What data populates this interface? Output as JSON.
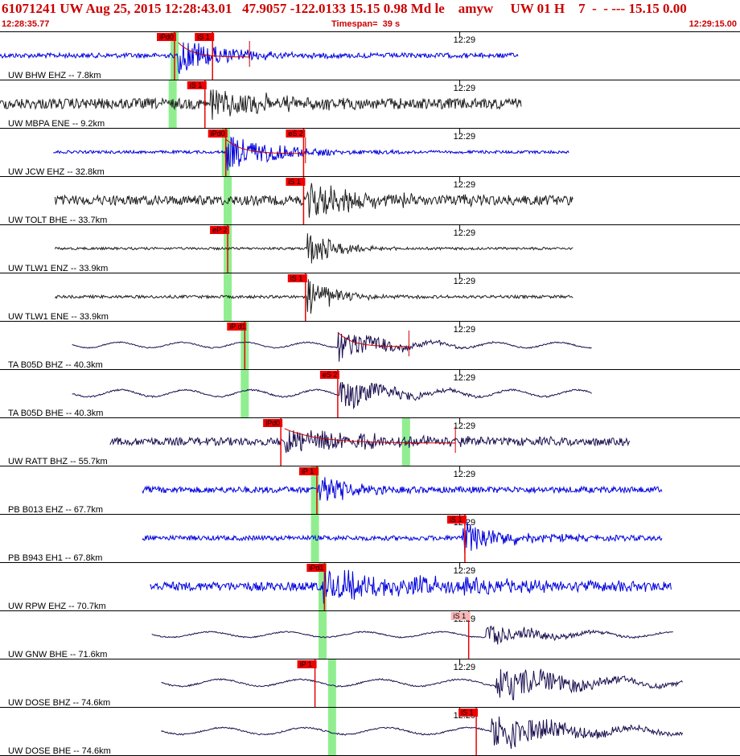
{
  "header": {
    "title": "61071241 UW Aug 25, 2015 12:28:43.01   47.9057 -122.0133 15.15 0.98 Md le    amyw     UW 01 H    7  -  - --- 15.15 0.00",
    "time_start": "12:28:35.77",
    "timespan": "Timespan=  39 s",
    "time_end": "12:29:15.00"
  },
  "colors": {
    "blue_trace": "#0000dd",
    "dark_trace": "#202020",
    "navy_trace": "#1c1050",
    "pick_box": "#ee0000",
    "pick_box_light": "#f7b5b5",
    "green_band": "#90ee90",
    "fit_curve": "#cc0000"
  },
  "chart_data": {
    "type": "line",
    "title": "61071241 UW Aug 25, 2015 12:28:43.01",
    "x_start": "12:28:35.77",
    "x_end": "12:29:15.00",
    "timespan_s": 39,
    "tick_label": "12:29",
    "tick_time_s": 24.23,
    "series": [
      {
        "name": "UW BHW EHZ -- 7.8km",
        "color": "blue",
        "start_s": 0.0,
        "end_s": 27.3,
        "amp": 0.1,
        "onset_s": 9.4,
        "burst": 0.75,
        "decay": 2.5,
        "picks": [
          {
            "label": "iPd0",
            "t": 9.2,
            "light": false
          },
          {
            "label": "iS 1",
            "t": 11.2,
            "light": false
          }
        ],
        "band_s": 9.2,
        "curve": true
      },
      {
        "name": "UW MBPA ENE -- 9.2km",
        "color": "dark",
        "start_s": 0.0,
        "end_s": 27.5,
        "amp": 0.22,
        "onset_s": 11.0,
        "burst": 0.7,
        "decay": 3.0,
        "picks": [
          {
            "label": "iS 1",
            "t": 10.8,
            "light": false
          }
        ],
        "band_s": 9.1,
        "curve": false
      },
      {
        "name": "UW JCW EHZ -- 32.8km",
        "color": "blue",
        "start_s": 2.8,
        "end_s": 30.0,
        "amp": 0.06,
        "onset_s": 11.9,
        "burst": 0.8,
        "decay": 2.8,
        "picks": [
          {
            "label": "iPd0",
            "t": 11.9,
            "light": false
          },
          {
            "label": "eS 2",
            "t": 16.0,
            "light": false
          }
        ],
        "band_s": 11.9,
        "curve": true
      },
      {
        "name": "UW TOLT BHE -- 33.7km",
        "color": "dark",
        "start_s": 2.9,
        "end_s": 30.2,
        "amp": 0.2,
        "onset_s": 16.2,
        "burst": 0.7,
        "decay": 3.5,
        "picks": [
          {
            "label": "iS 1",
            "t": 16.0,
            "light": false
          }
        ],
        "band_s": 12.0,
        "curve": false
      },
      {
        "name": "UW TLW1 ENZ -- 33.9km",
        "color": "dark",
        "start_s": 2.9,
        "end_s": 30.2,
        "amp": 0.05,
        "onset_s": 16.2,
        "burst": 0.8,
        "decay": 1.5,
        "picks": [
          {
            "label": "eP 2",
            "t": 12.0,
            "light": false
          }
        ],
        "band_s": 12.0,
        "curve": false
      },
      {
        "name": "UW TLW1 ENE -- 33.9km",
        "color": "dark",
        "start_s": 2.9,
        "end_s": 30.2,
        "amp": 0.06,
        "onset_s": 16.2,
        "burst": 0.8,
        "decay": 1.5,
        "picks": [
          {
            "label": "iS 1",
            "t": 16.1,
            "light": false
          }
        ],
        "band_s": 12.0,
        "curve": false
      },
      {
        "name": "TA B05D BHZ -- 40.3km",
        "color": "navy",
        "start_s": 3.8,
        "end_s": 31.2,
        "amp": 0.08,
        "onset_s": 17.8,
        "burst": 0.7,
        "decay": 2.5,
        "picks": [
          {
            "label": "iP d1",
            "t": 12.9,
            "light": false
          }
        ],
        "band_s": 12.9,
        "curve": true
      },
      {
        "name": "TA B05D BHE -- 40.3km",
        "color": "navy",
        "start_s": 3.8,
        "end_s": 31.2,
        "amp": 0.1,
        "onset_s": 17.9,
        "burst": 0.7,
        "decay": 2.5,
        "picks": [
          {
            "label": "eS 2",
            "t": 17.8,
            "light": false
          }
        ],
        "band_s": 12.9,
        "curve": false
      },
      {
        "name": "UW RATT BHZ -- 55.7km",
        "color": "navy",
        "start_s": 5.8,
        "end_s": 33.2,
        "amp": 0.16,
        "onset_s": 15.0,
        "burst": 0.5,
        "decay": 6.0,
        "picks": [
          {
            "label": "iPd0",
            "t": 14.8,
            "light": false
          }
        ],
        "band_s": 21.4,
        "curve": true
      },
      {
        "name": "PB B013 EHZ -- 67.7km",
        "color": "blue",
        "start_s": 7.5,
        "end_s": 34.9,
        "amp": 0.13,
        "onset_s": 16.7,
        "burst": 0.8,
        "decay": 1.5,
        "picks": [
          {
            "label": "iP 1",
            "t": 16.7,
            "light": false
          }
        ],
        "band_s": 16.6,
        "curve": false
      },
      {
        "name": "PB B943 EH1 -- 67.8km",
        "color": "blue",
        "start_s": 7.5,
        "end_s": 34.9,
        "amp": 0.1,
        "onset_s": 24.4,
        "burst": 0.7,
        "decay": 2.5,
        "picks": [
          {
            "label": "iS 1",
            "t": 24.5,
            "light": false
          }
        ],
        "band_s": 16.6,
        "curve": false
      },
      {
        "name": "UW RPW EHZ -- 70.7km",
        "color": "blue",
        "start_s": 7.9,
        "end_s": 35.4,
        "amp": 0.18,
        "onset_s": 17.0,
        "burst": 0.6,
        "decay": 8.0,
        "picks": [
          {
            "label": "iPd1",
            "t": 17.1,
            "light": false
          }
        ],
        "band_s": 17.0,
        "curve": false
      },
      {
        "name": "UW GNW BHE -- 71.6km",
        "color": "navy",
        "start_s": 8.0,
        "end_s": 35.5,
        "amp": 0.08,
        "onset_s": 25.6,
        "burst": 0.5,
        "decay": 3.0,
        "picks": [
          {
            "label": "iS 1",
            "t": 24.7,
            "light": true
          }
        ],
        "band_s": 17.0,
        "curve": false
      },
      {
        "name": "UW DOSE BHZ -- 74.6km",
        "color": "navy",
        "start_s": 8.5,
        "end_s": 36.0,
        "amp": 0.1,
        "onset_s": 26.1,
        "burst": 0.8,
        "decay": 4.0,
        "picks": [
          {
            "label": "iP 1",
            "t": 16.6,
            "light": false
          }
        ],
        "band_s": 17.5,
        "curve": false
      },
      {
        "name": "UW DOSE BHE -- 74.6km",
        "color": "navy",
        "start_s": 8.5,
        "end_s": 36.0,
        "amp": 0.1,
        "onset_s": 25.9,
        "burst": 0.8,
        "decay": 4.0,
        "picks": [
          {
            "label": "iS 1",
            "t": 25.1,
            "light": false
          }
        ],
        "band_s": 17.5,
        "curve": false
      }
    ]
  }
}
